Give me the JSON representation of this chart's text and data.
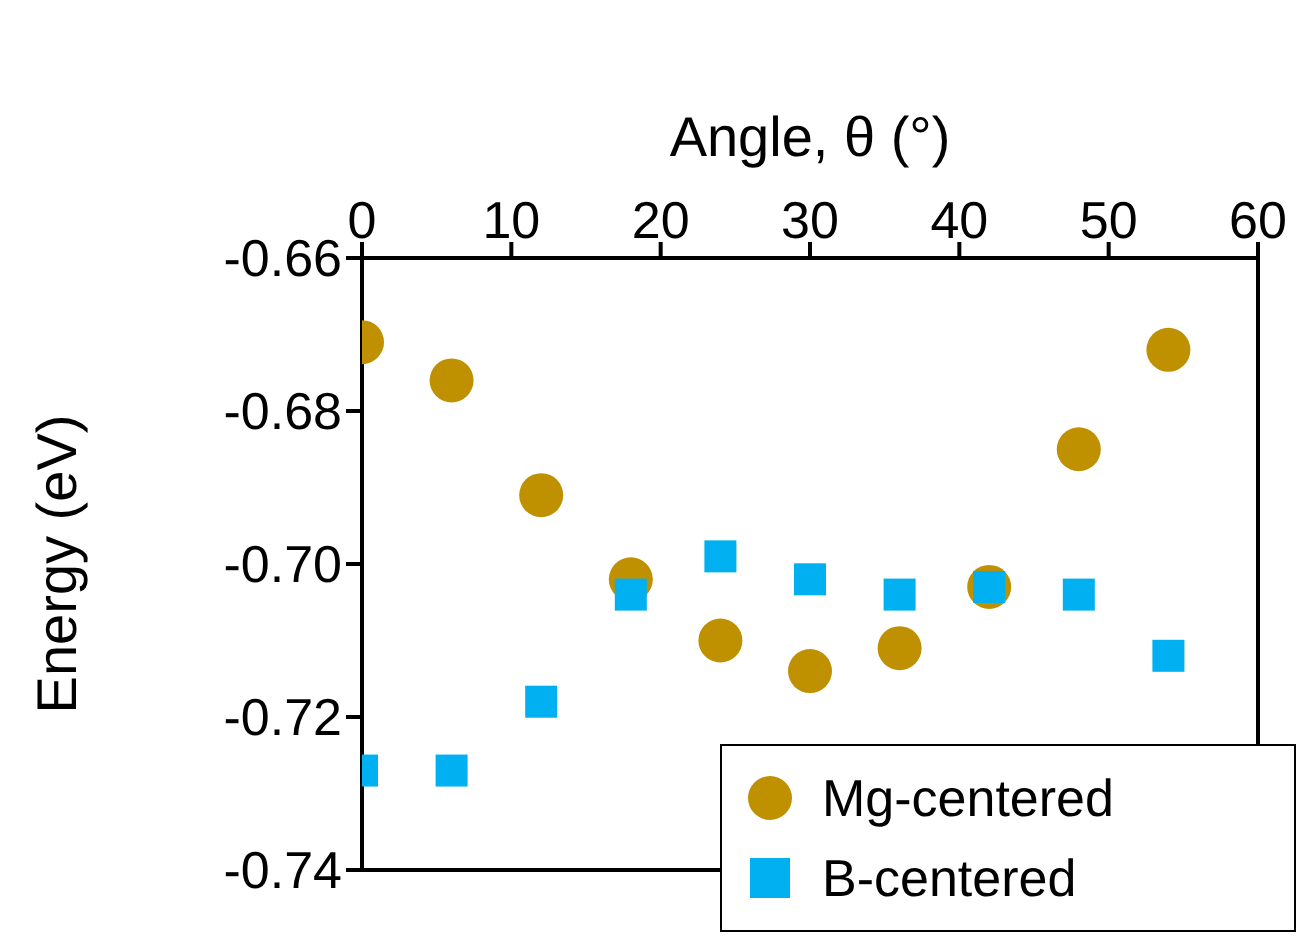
{
  "chart_data": {
    "type": "scatter",
    "xlabel": "Angle, θ (°)",
    "ylabel": "Energy (eV)",
    "x": [
      0,
      6,
      12,
      18,
      24,
      30,
      36,
      42,
      48,
      54
    ],
    "xlim": [
      0,
      60
    ],
    "xticks": [
      0,
      10,
      20,
      30,
      40,
      50,
      60
    ],
    "ylim": [
      -0.74,
      -0.66
    ],
    "yticks": [
      -0.74,
      -0.72,
      {
        "value": -0.7,
        "label": "-0.70"
      },
      -0.68,
      -0.66
    ],
    "grid": false,
    "legend": "bottom right",
    "series": [
      {
        "name": "Mg-centered",
        "color": "#bf9000",
        "marker": "circle",
        "values": [
          -0.671,
          -0.676,
          -0.691,
          -0.702,
          -0.71,
          -0.714,
          -0.711,
          -0.703,
          -0.685,
          -0.672
        ]
      },
      {
        "name": "B-centered",
        "color": "#00b0f0",
        "marker": "square",
        "values": [
          -0.727,
          -0.727,
          -0.718,
          -0.704,
          -0.699,
          -0.702,
          -0.704,
          -0.703,
          -0.704,
          -0.712
        ]
      }
    ]
  }
}
